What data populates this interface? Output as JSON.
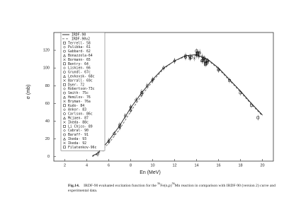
{
  "chart_data": {
    "type": "scatter",
    "xlabel": "En (MeV)",
    "ylabel": "σ (mb)",
    "xlim": [
      1,
      21
    ],
    "ylim": [
      -5,
      140
    ],
    "xticks": [
      2,
      4,
      6,
      8,
      10,
      12,
      14,
      16,
      18,
      20
    ],
    "yticks": [
      0,
      20,
      40,
      60,
      80,
      100,
      120
    ],
    "legend": "upper left",
    "caption": {
      "label": "Fig.14.",
      "parts": [
        "IRDF-90 evaluated excitation function for the ",
        "56",
        "Fe(n,p)",
        "56",
        "Mn reaction in comparison with IRDF-90 (version 2) curve and experimental data."
      ]
    },
    "lines": [
      {
        "name": "IRDF-90",
        "style": "solid",
        "color": "#000000",
        "x": [
          4.5,
          5,
          6,
          7,
          8,
          9,
          10,
          11,
          12,
          13,
          14,
          15,
          16,
          17,
          18,
          19,
          20
        ],
        "values": [
          1,
          4,
          18,
          35,
          55,
          72,
          87,
          100,
          108,
          114,
          115,
          110,
          100,
          87,
          74,
          60,
          47
        ]
      },
      {
        "name": "IRDF-90v2",
        "style": "dashed",
        "color": "#555555",
        "x": [
          4.5,
          5,
          6,
          7,
          8,
          9,
          10,
          11,
          12,
          13,
          14,
          15,
          16,
          17,
          18,
          19,
          20
        ],
        "values": [
          0,
          3,
          15,
          31,
          51,
          69,
          85,
          99,
          108,
          113,
          114,
          109,
          99,
          86,
          73,
          59,
          46
        ]
      }
    ],
    "series": [
      {
        "name": "Terrell- 58",
        "marker": "square",
        "x": [
          13.5,
          14.5,
          14.8
        ],
        "values": [
          112,
          108,
          105
        ]
      },
      {
        "name": "Pulibka- 61",
        "marker": "diamond",
        "x": [
          14.1,
          14.7
        ],
        "values": [
          118,
          110
        ]
      },
      {
        "name": "Gabbard- 62",
        "marker": "circle",
        "x": [
          13,
          14,
          15
        ],
        "values": [
          114,
          116,
          106
        ]
      },
      {
        "name": "Bonazzola-64",
        "marker": "triangle",
        "x": [
          14.5
        ],
        "values": [
          109
        ]
      },
      {
        "name": "Bormann- 65",
        "marker": "cross",
        "x": [
          13.8,
          14.2
        ],
        "values": [
          111,
          113
        ]
      },
      {
        "name": "Bentry- 64",
        "marker": "square",
        "x": [
          14,
          14.8
        ],
        "values": [
          119,
          104
        ]
      },
      {
        "name": "Liskien- 66",
        "marker": "diamond",
        "x": [
          12,
          13,
          14,
          15,
          16
        ],
        "values": [
          108,
          112,
          114,
          108,
          98
        ]
      },
      {
        "name": "Grundl- 67c",
        "marker": "circle",
        "x": [
          7,
          8,
          9
        ],
        "values": [
          34,
          52,
          70
        ]
      },
      {
        "name": "Levkovsk- 68c",
        "marker": "triangle",
        "x": [
          14.6
        ],
        "values": [
          108
        ]
      },
      {
        "name": "Barrall- 69c",
        "marker": "cross",
        "x": [
          6,
          7,
          8,
          9,
          10
        ],
        "values": [
          18,
          33,
          55,
          73,
          86
        ]
      },
      {
        "name": "Dyer- 72",
        "marker": "square",
        "x": [
          14.2
        ],
        "values": [
          116
        ]
      },
      {
        "name": "Robertson-73c",
        "marker": "diamond",
        "x": [
          14.7
        ],
        "values": [
          109
        ]
      },
      {
        "name": "Smith- 75c",
        "marker": "circle",
        "x": [
          5,
          5.5,
          6,
          6.5,
          7,
          7.5,
          8,
          8.5,
          9,
          9.5,
          10
        ],
        "values": [
          3,
          9,
          17,
          26,
          36,
          46,
          56,
          64,
          72,
          80,
          87
        ]
      },
      {
        "name": "Hemilov- 76",
        "marker": "triangle",
        "x": [
          14.6
        ],
        "values": [
          111
        ]
      },
      {
        "name": "Bryman- 76a",
        "marker": "cross",
        "x": [
          14.8
        ],
        "values": [
          107
        ]
      },
      {
        "name": "Kudo- 84",
        "marker": "square",
        "x": [
          13.4,
          14.1,
          14.7
        ],
        "values": [
          113,
          115,
          111
        ]
      },
      {
        "name": "Ankor- 83",
        "marker": "diamond",
        "x": [
          14.5
        ],
        "values": [
          113
        ]
      },
      {
        "name": "Carlson- 86c",
        "marker": "circle",
        "x": [
          11,
          12,
          13
        ],
        "values": [
          100,
          108,
          112
        ]
      },
      {
        "name": "Mcjaen- 87",
        "marker": "triangle",
        "x": [
          14.3
        ],
        "values": [
          118
        ]
      },
      {
        "name": "Ikeda- 88c",
        "marker": "cross",
        "x": [
          13.4,
          14.9
        ],
        "values": [
          112,
          107
        ]
      },
      {
        "name": "Li Chico- 89",
        "marker": "square",
        "x": [
          14.1
        ],
        "values": [
          117
        ]
      },
      {
        "name": "Cabral- 90",
        "marker": "diamond",
        "x": [
          14.6
        ],
        "values": [
          110
        ]
      },
      {
        "name": "Baraff- 91",
        "marker": "circle",
        "x": [
          14.9
        ],
        "values": [
          105
        ]
      },
      {
        "name": "Ikeda- 93",
        "marker": "triangle",
        "x": [
          13.4
        ],
        "values": [
          111
        ]
      },
      {
        "name": "Ikeda- 92",
        "marker": "cross",
        "x": [
          14.8
        ],
        "values": [
          106
        ]
      },
      {
        "name": "Filatenkov-96c",
        "marker": "square",
        "x": [
          15,
          16,
          17,
          18,
          19,
          19.6
        ],
        "values": [
          108,
          98,
          86,
          72,
          58,
          44
        ]
      }
    ]
  }
}
